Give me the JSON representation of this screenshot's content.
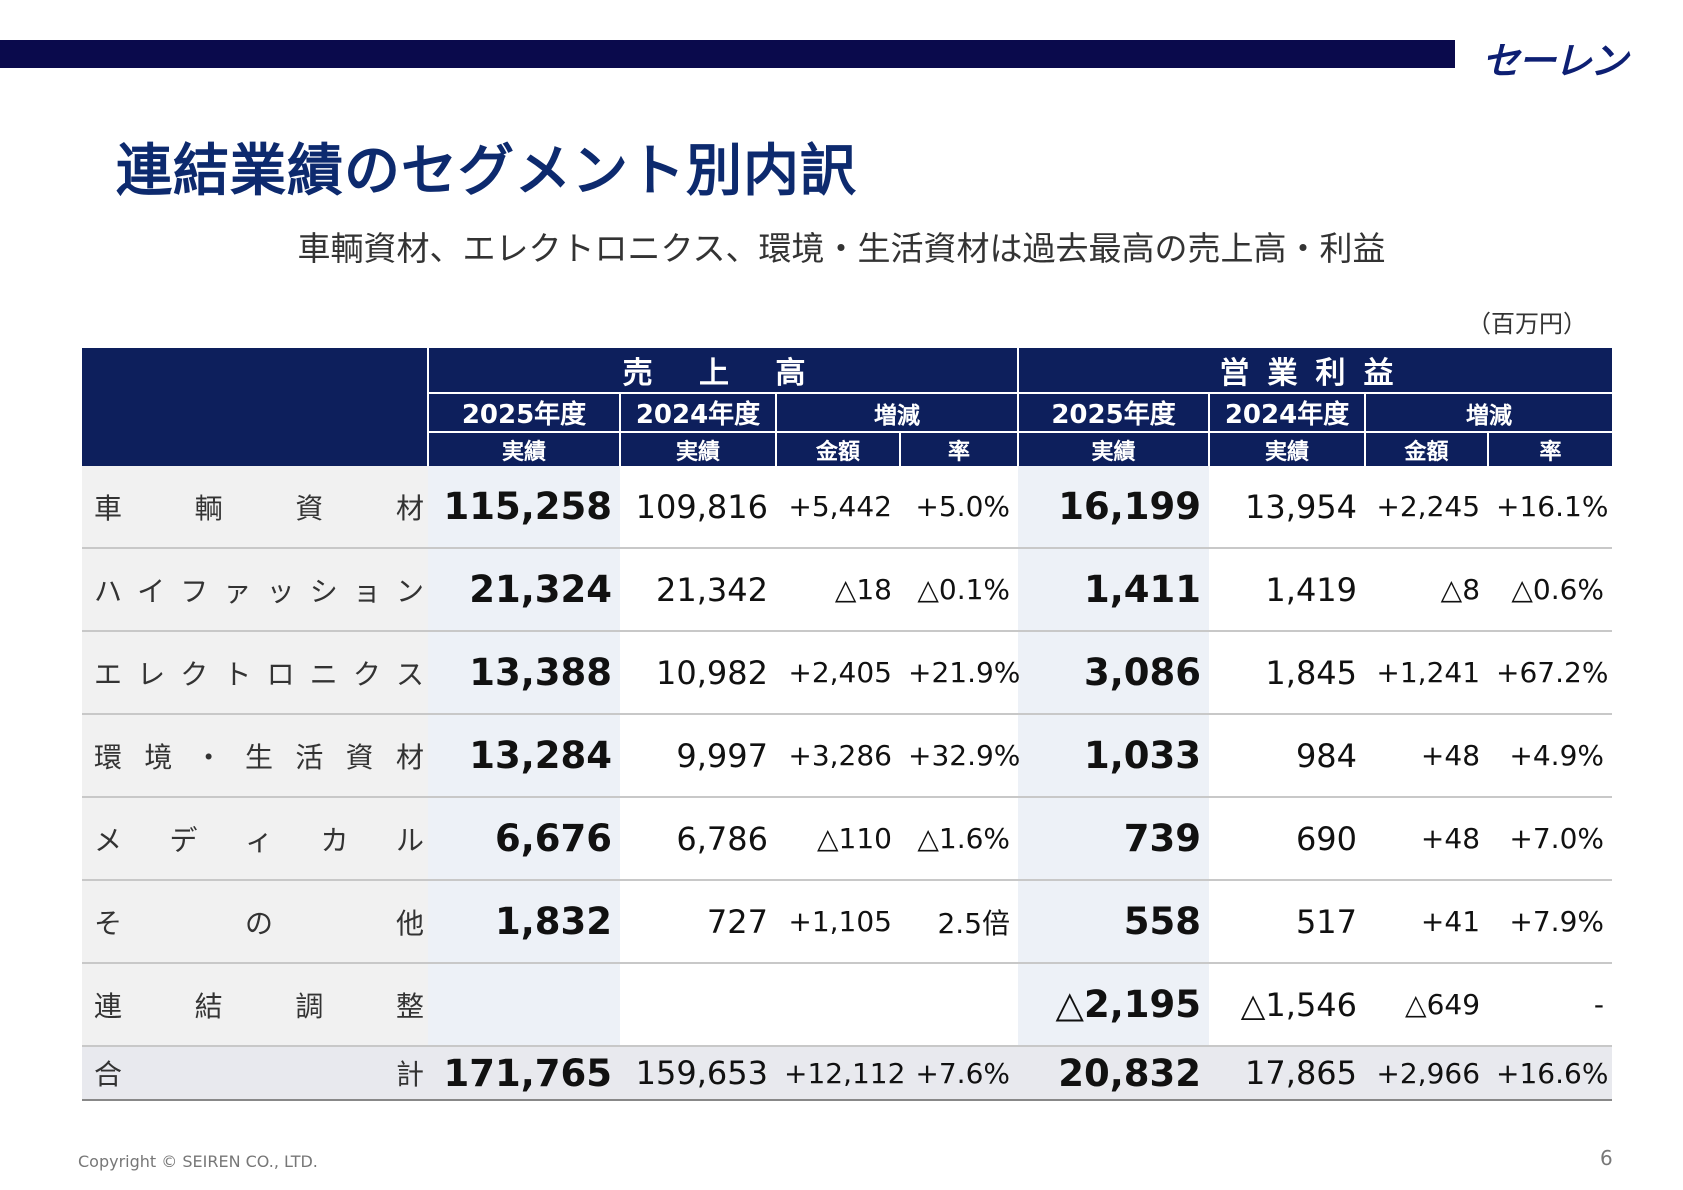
{
  "logo_text": "セーレン",
  "title": "連結業績のセグメント別内訳",
  "subtitle": "車輌資材、エレクトロニクス、環境・生活資材は過去最高の売上高・利益",
  "unit": "（百万円）",
  "header": {
    "sales": "売 上 高",
    "profit": "営業利益",
    "fy2025": "2025年度",
    "fy2024": "2024年度",
    "change": "増減",
    "actual": "実績",
    "amount": "金額",
    "rate": "率"
  },
  "rows": [
    {
      "label": [
        "車",
        "輌",
        "資",
        "材"
      ],
      "s25": "115,258",
      "s24": "109,816",
      "sd": "+5,442",
      "sr": "+5.0%",
      "p25": "16,199",
      "p24": "13,954",
      "pd": "+2,245",
      "pr": "+16.1%"
    },
    {
      "label": [
        "ハ",
        "イ",
        "フ",
        "ァ",
        "ッ",
        "シ",
        "ョ",
        "ン"
      ],
      "s25": "21,324",
      "s24": "21,342",
      "sd": "△18",
      "sr": "△0.1%",
      "p25": "1,411",
      "p24": "1,419",
      "pd": "△8",
      "pr": "△0.6%"
    },
    {
      "label": [
        "エ",
        "レ",
        "ク",
        "ト",
        "ロ",
        "ニ",
        "ク",
        "ス"
      ],
      "s25": "13,388",
      "s24": "10,982",
      "sd": "+2,405",
      "sr": "+21.9%",
      "p25": "3,086",
      "p24": "1,845",
      "pd": "+1,241",
      "pr": "+67.2%"
    },
    {
      "label": [
        "環",
        "境",
        "・",
        "生",
        "活",
        "資",
        "材"
      ],
      "s25": "13,284",
      "s24": "9,997",
      "sd": "+3,286",
      "sr": "+32.9%",
      "p25": "1,033",
      "p24": "984",
      "pd": "+48",
      "pr": "+4.9%"
    },
    {
      "label": [
        "メ",
        "デ",
        "ィ",
        "カ",
        "ル"
      ],
      "s25": "6,676",
      "s24": "6,786",
      "sd": "△110",
      "sr": "△1.6%",
      "p25": "739",
      "p24": "690",
      "pd": "+48",
      "pr": "+7.0%"
    },
    {
      "label": [
        "そ",
        "の",
        "他"
      ],
      "s25": "1,832",
      "s24": "727",
      "sd": "+1,105",
      "sr": "2.5倍",
      "p25": "558",
      "p24": "517",
      "pd": "+41",
      "pr": "+7.9%"
    },
    {
      "label": [
        "連",
        "結",
        "調",
        "整"
      ],
      "s25": "",
      "s24": "",
      "sd": "",
      "sr": "",
      "p25": "△2,195",
      "p24": "△1,546",
      "pd": "△649",
      "pr": "-"
    }
  ],
  "total": {
    "label": [
      "合",
      "計"
    ],
    "s25": "171,765",
    "s24": "159,653",
    "sd": "+12,112",
    "sr": "+7.6%",
    "p25": "20,832",
    "p24": "17,865",
    "pd": "+2,966",
    "pr": "+16.6%"
  },
  "copyright": "Copyright © SEIREN CO., LTD.",
  "page_number": "6"
}
